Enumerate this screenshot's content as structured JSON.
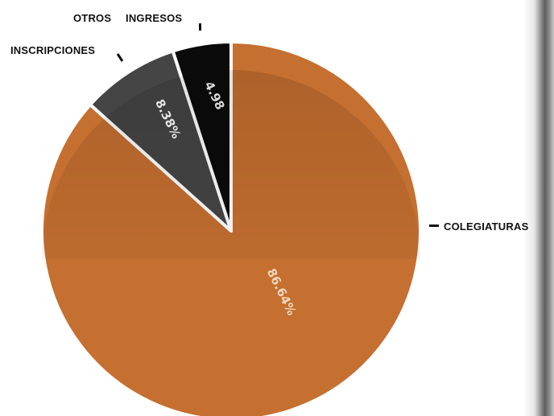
{
  "chart_data": {
    "type": "pie",
    "slices": [
      {
        "label": "COLEGIATURAS",
        "label_text": "COLEGIATURAS",
        "value": 86.64,
        "value_label": "86.64%",
        "color": "#c56f30"
      },
      {
        "label": "INSCRIPCIONES",
        "label_text": "INSCRIPCIONES",
        "value": 8.38,
        "value_label": "8.38%",
        "color": "#454545"
      },
      {
        "label": "OTROS INGRESOS",
        "label_text": "OTROS INGRESOS",
        "value": 4.98,
        "value_label": "4.98",
        "color": "#0b0b0b"
      }
    ]
  }
}
